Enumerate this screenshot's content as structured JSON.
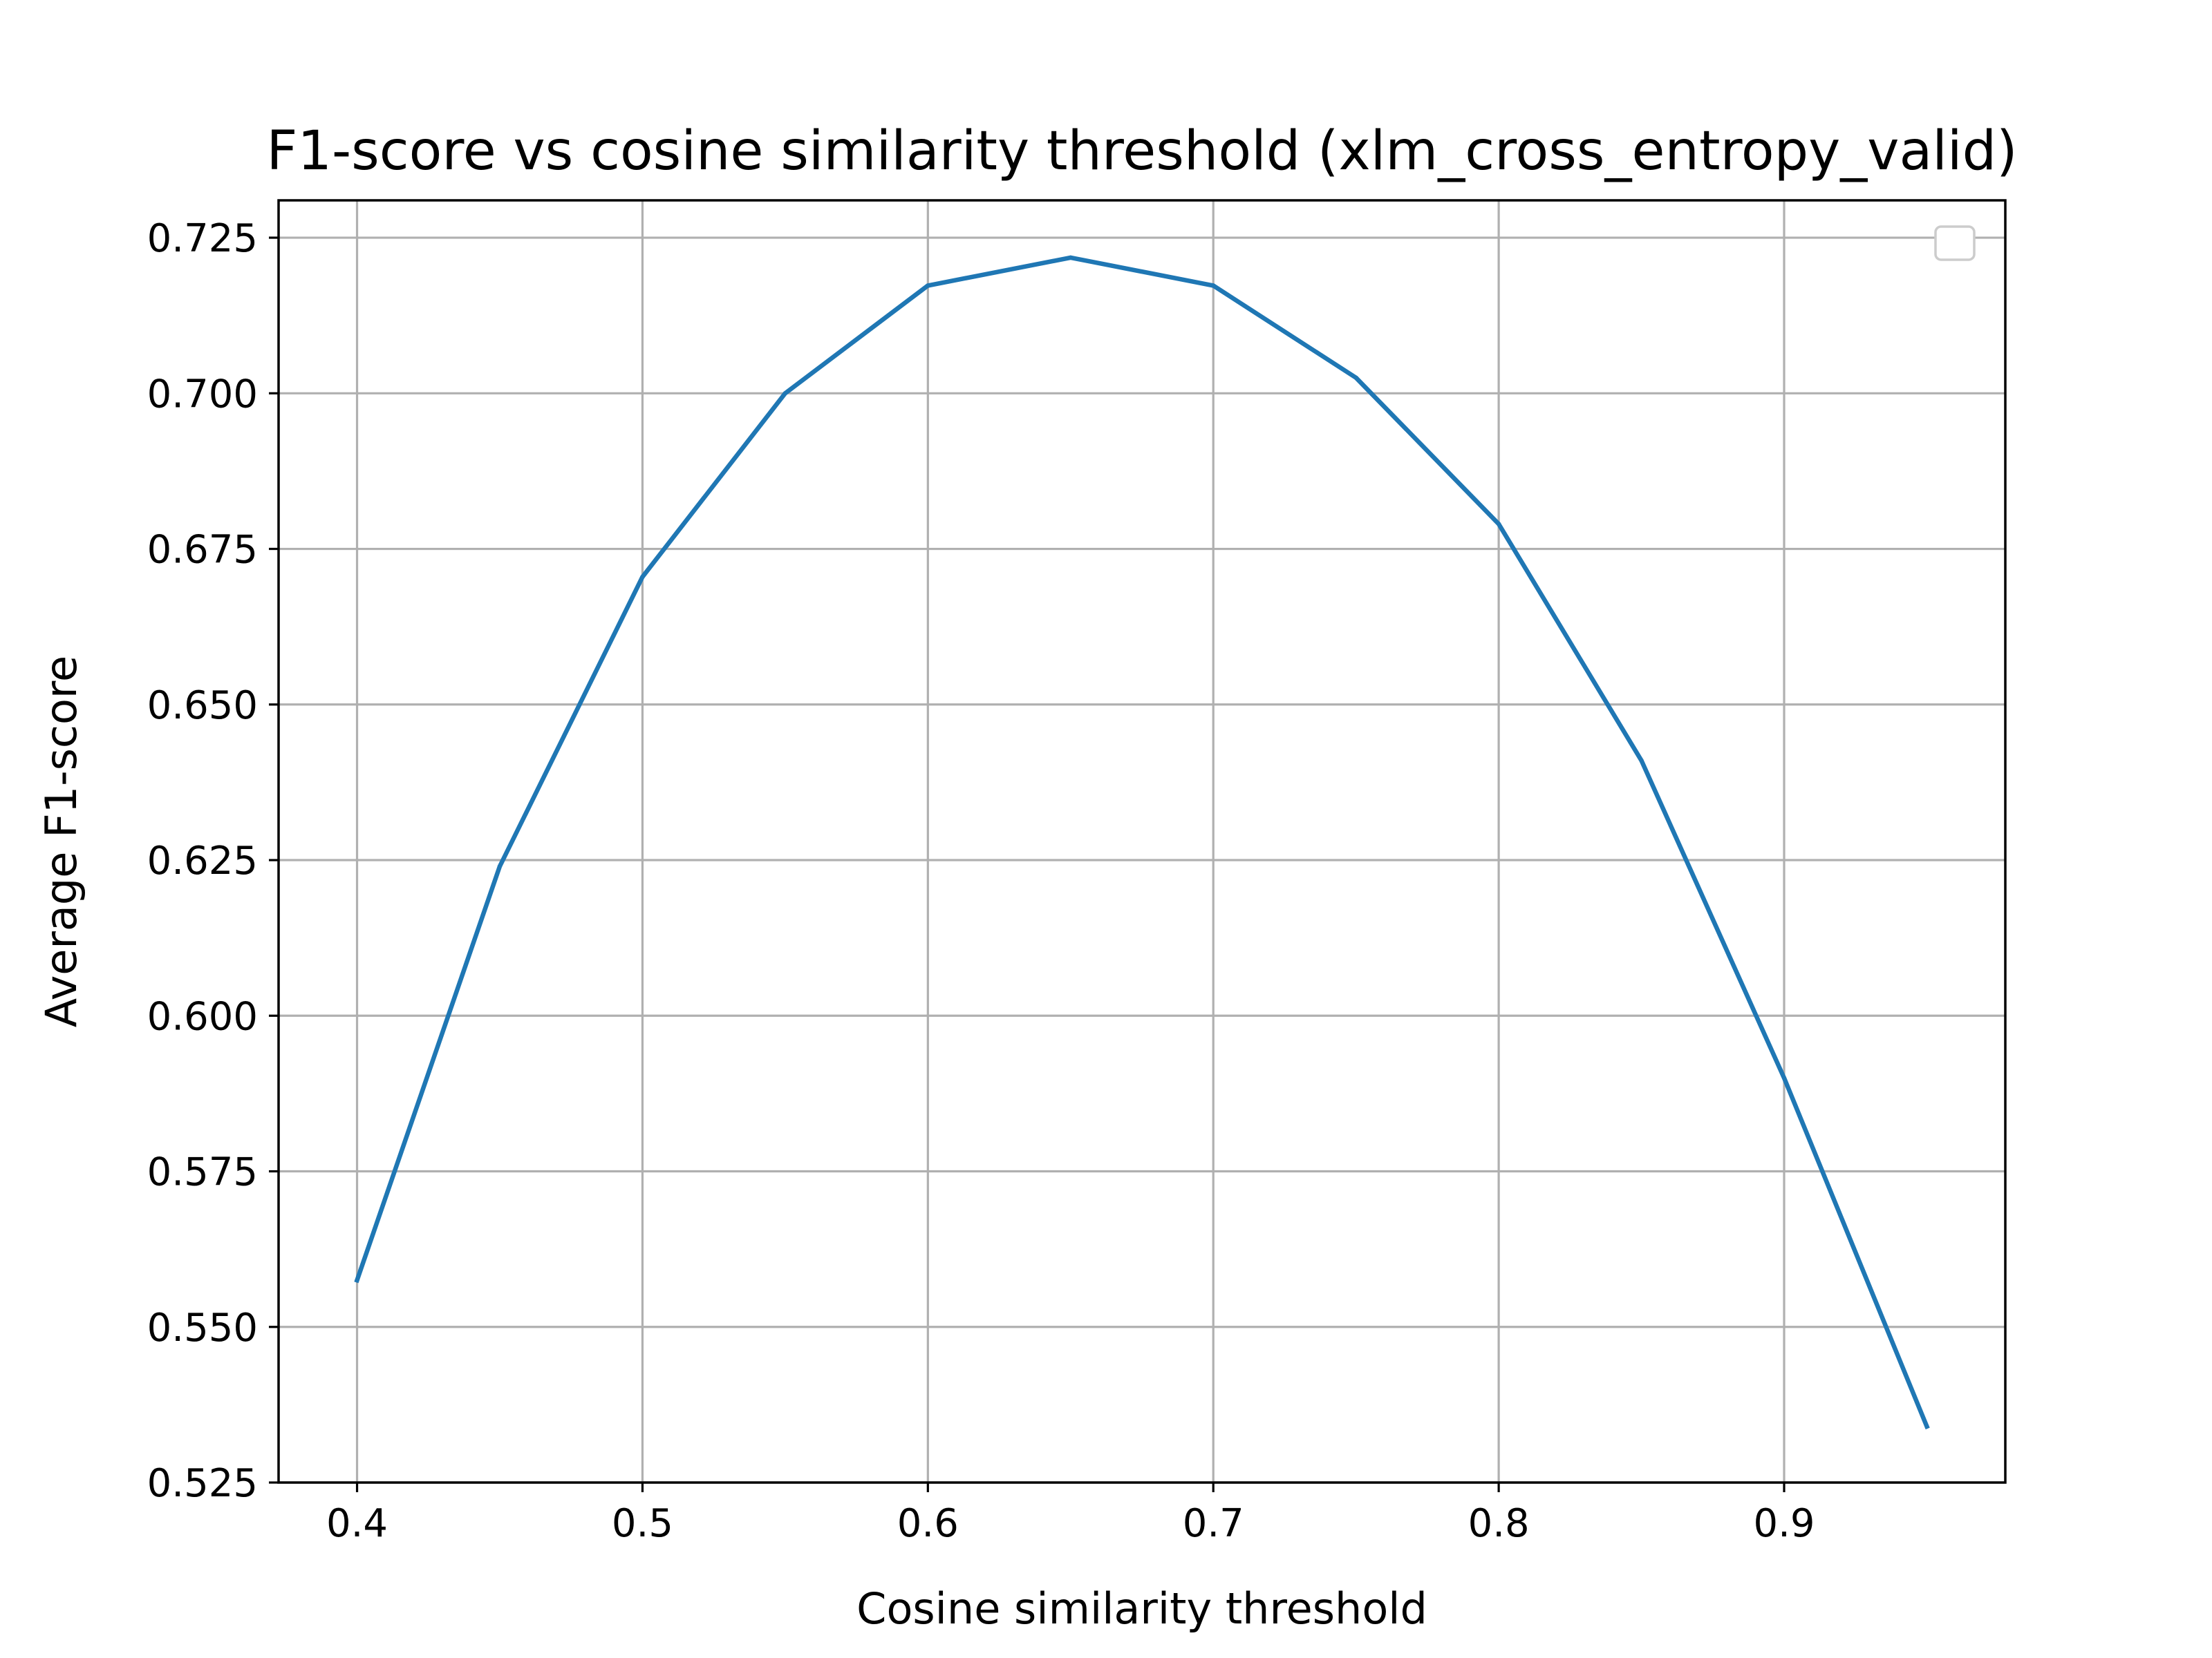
{
  "chart_data": {
    "type": "line",
    "title": "F1-score vs cosine similarity threshold (xlm_cross_entropy_valid)",
    "xlabel": "Cosine similarity threshold",
    "ylabel": "Average F1-score",
    "xlim": [
      0.3725,
      0.9775
    ],
    "ylim": [
      0.525,
      0.731
    ],
    "xticks": [
      {
        "value": 0.4,
        "label": "0.4"
      },
      {
        "value": 0.5,
        "label": "0.5"
      },
      {
        "value": 0.6,
        "label": "0.6"
      },
      {
        "value": 0.7,
        "label": "0.7"
      },
      {
        "value": 0.8,
        "label": "0.8"
      },
      {
        "value": 0.9,
        "label": "0.9"
      }
    ],
    "yticks": [
      {
        "value": 0.525,
        "label": "0.525"
      },
      {
        "value": 0.55,
        "label": "0.550"
      },
      {
        "value": 0.575,
        "label": "0.575"
      },
      {
        "value": 0.6,
        "label": "0.600"
      },
      {
        "value": 0.625,
        "label": "0.625"
      },
      {
        "value": 0.65,
        "label": "0.650"
      },
      {
        "value": 0.675,
        "label": "0.675"
      },
      {
        "value": 0.7,
        "label": "0.700"
      },
      {
        "value": 0.725,
        "label": "0.725"
      }
    ],
    "grid": true,
    "legend": {
      "placement": "top-right",
      "entries": []
    },
    "series": [
      {
        "color": "#1f77b4",
        "x": [
          0.4,
          0.45,
          0.5,
          0.55,
          0.6,
          0.65,
          0.7,
          0.75,
          0.8,
          0.85,
          0.9,
          0.95
        ],
        "y": [
          0.5575,
          0.624,
          0.6705,
          0.7,
          0.7173,
          0.7218,
          0.7173,
          0.7025,
          0.679,
          0.641,
          0.59,
          0.534
        ]
      }
    ]
  }
}
